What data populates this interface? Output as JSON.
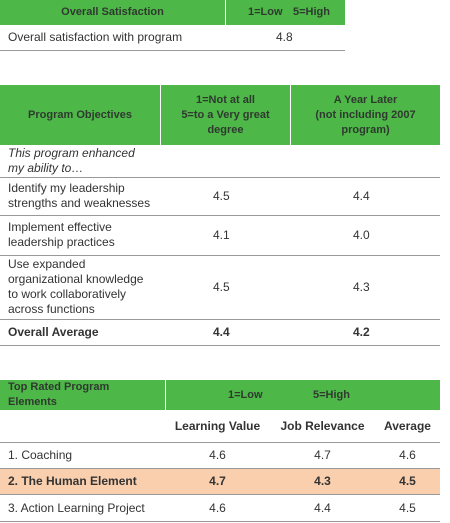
{
  "satisfaction": {
    "header": [
      "Overall Satisfaction",
      "1=Low",
      "5=High"
    ],
    "row": [
      "Overall satisfaction with program",
      "4.8"
    ]
  },
  "objectives": {
    "header": [
      "Program Objectives",
      "1=Not at all",
      "5=to a Very great degree",
      "A Year Later",
      "(not including 2007 program)"
    ],
    "intro": "This program enhanced my ability to…",
    "rows": [
      [
        "Identify my leadership strengths and weaknesses",
        "4.5",
        "4.4"
      ],
      [
        "Implement effective leadership practices",
        "4.1",
        "4.0"
      ],
      [
        "Use expanded organizational knowledge to work collaboratively across functions",
        "4.5",
        "4.3"
      ]
    ],
    "total": [
      "Overall Average",
      "4.4",
      "4.2"
    ]
  },
  "elements": {
    "header": [
      "Top Rated Program Elements",
      "1=Low",
      "5=High"
    ],
    "columns": [
      "Learning Value",
      "Job Relevance",
      "Average"
    ],
    "rows": [
      [
        "1. Coaching",
        "4.6",
        "4.7",
        "4.6"
      ],
      [
        "2. The Human Element",
        "4.7",
        "4.3",
        "4.5"
      ],
      [
        "3. Action Learning Project",
        "4.6",
        "4.4",
        "4.5"
      ]
    ]
  }
}
